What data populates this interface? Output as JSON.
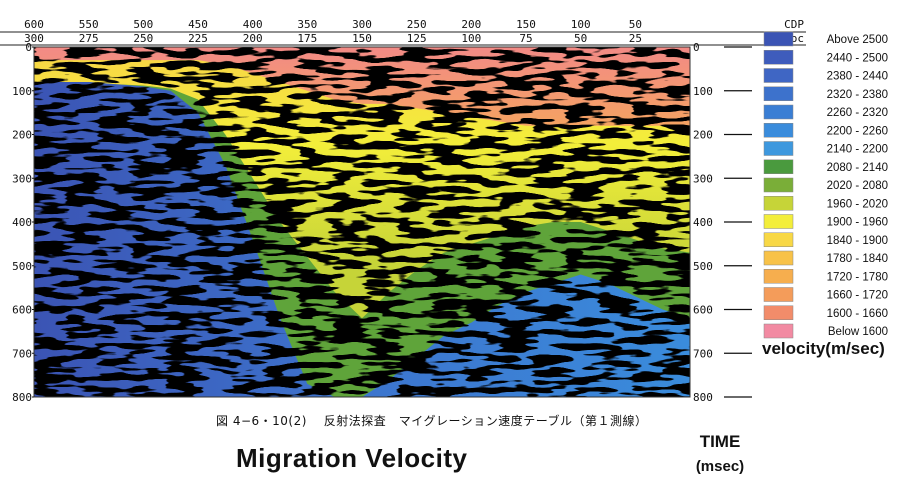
{
  "chart_data": {
    "type": "heatmap",
    "title": "Migration Velocity",
    "top_axis": {
      "cdp_label": "CDP",
      "kloc_label": "K_Loc",
      "cdp_ticks": [
        "600",
        "550",
        "500",
        "450",
        "400",
        "350",
        "300",
        "250",
        "200",
        "150",
        "100",
        "50"
      ],
      "kloc_ticks": [
        "300",
        "275",
        "250",
        "225",
        "200",
        "175",
        "150",
        "125",
        "100",
        "75",
        "50",
        "25"
      ],
      "range": [
        600,
        0
      ]
    },
    "y_axis": {
      "label": "TIME",
      "unit": "(msec)",
      "ticks": [
        "0",
        "100",
        "200",
        "300",
        "400",
        "500",
        "600",
        "700",
        "800"
      ],
      "range": [
        0,
        800
      ]
    },
    "legend": {
      "title": "velocity(m/sec)",
      "placement": "right",
      "entries": [
        {
          "label": "Above   2500",
          "color": "#3b54b4"
        },
        {
          "label": "2440 - 2500",
          "color": "#3e5cbc"
        },
        {
          "label": "2380 - 2440",
          "color": "#3f66c4"
        },
        {
          "label": "2320 - 2380",
          "color": "#3d72cc"
        },
        {
          "label": "2260 - 2320",
          "color": "#3a7ed4"
        },
        {
          "label": "2200 - 2260",
          "color": "#3a8cdc"
        },
        {
          "label": "2140 - 2200",
          "color": "#3d98de"
        },
        {
          "label": "2080 - 2140",
          "color": "#4a9a3e"
        },
        {
          "label": "2020 - 2080",
          "color": "#7aae38"
        },
        {
          "label": "1960 - 2020",
          "color": "#c6d438"
        },
        {
          "label": "1900 - 1960",
          "color": "#f3ee3a"
        },
        {
          "label": "1840 - 1900",
          "color": "#f8d845"
        },
        {
          "label": "1780 - 1840",
          "color": "#f8c248"
        },
        {
          "label": "1720 - 1780",
          "color": "#f6ae4e"
        },
        {
          "label": "1660 - 1720",
          "color": "#f49c5a"
        },
        {
          "label": "1600 - 1660",
          "color": "#f28c6a"
        },
        {
          "label": "Below   1600",
          "color": "#f28aa2"
        }
      ]
    },
    "boundaries_msec": {
      "note": "",
      "cdp": [
        600,
        575,
        550,
        525,
        500,
        475,
        450,
        425,
        400,
        375,
        350,
        325,
        300,
        275,
        250,
        225,
        200,
        175,
        150,
        125,
        100,
        75,
        50,
        25,
        0
      ],
      "blue_top": [
        80,
        80,
        80,
        85,
        90,
        100,
        150,
        270,
        440,
        620,
        770,
        800,
        800,
        760,
        710,
        660,
        630,
        590,
        560,
        540,
        520,
        540,
        570,
        600,
        620
      ],
      "green_top": [
        80,
        80,
        80,
        85,
        88,
        95,
        120,
        200,
        300,
        400,
        480,
        560,
        620,
        560,
        510,
        470,
        450,
        430,
        410,
        400,
        400,
        420,
        440,
        460,
        470
      ],
      "yellow_top": [
        30,
        30,
        30,
        30,
        30,
        30,
        30,
        40,
        60,
        80,
        100,
        120,
        130,
        130,
        140,
        150,
        160,
        170,
        180,
        180,
        180,
        180,
        180,
        180,
        180
      ]
    }
  },
  "caption": "図 4−6・10(2)　 反射法探査　マイグレーション速度テーブル（第１測線）"
}
